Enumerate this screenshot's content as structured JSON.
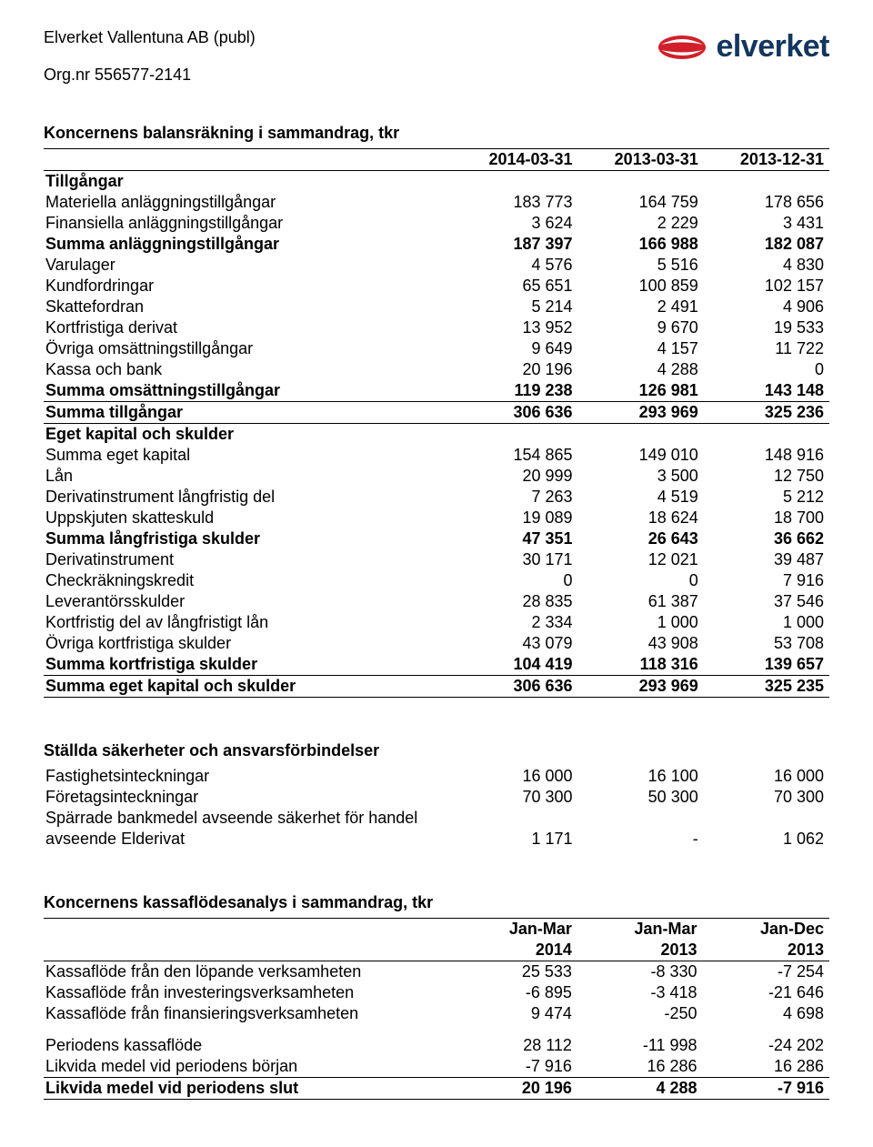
{
  "header": {
    "company": "Elverket Vallentuna AB (publ)",
    "orgnr": "Org.nr 556577-2141",
    "logo_text": "elverket",
    "logo_colors": {
      "red": "#d1202a",
      "navy": "#13365e",
      "white": "#ffffff"
    }
  },
  "balance": {
    "title": "Koncernens balansräkning i sammandrag, tkr",
    "columns": [
      "2014-03-31",
      "2013-03-31",
      "2013-12-31"
    ],
    "rows": [
      {
        "label": "Tillgångar",
        "bold": true
      },
      {
        "label": "Materiella anläggningstillgångar",
        "values": [
          "183 773",
          "164 759",
          "178 656"
        ]
      },
      {
        "label": "Finansiella anläggningstillgångar",
        "values": [
          "3 624",
          "2 229",
          "3 431"
        ]
      },
      {
        "label": "Summa anläggningstillgångar",
        "bold": true,
        "values": [
          "187 397",
          "166 988",
          "182 087"
        ]
      },
      {
        "label": "Varulager",
        "values": [
          "4 576",
          "5 516",
          "4 830"
        ]
      },
      {
        "label": "Kundfordringar",
        "values": [
          "65 651",
          "100 859",
          "102 157"
        ]
      },
      {
        "label": "Skattefordran",
        "values": [
          "5 214",
          "2 491",
          "4 906"
        ]
      },
      {
        "label": "Kortfristiga derivat",
        "values": [
          "13 952",
          "9 670",
          "19 533"
        ]
      },
      {
        "label": "Övriga omsättningstillgångar",
        "values": [
          "9 649",
          "4 157",
          "11 722"
        ]
      },
      {
        "label": "Kassa och bank",
        "values": [
          "20 196",
          "4 288",
          "0"
        ]
      },
      {
        "label": "Summa omsättningstillgångar",
        "bold": true,
        "values": [
          "119 238",
          "126 981",
          "143 148"
        ]
      },
      {
        "label": "Summa tillgångar",
        "bold": true,
        "boxed": true,
        "values": [
          "306 636",
          "293 969",
          "325 236"
        ]
      },
      {
        "label": "Eget kapital och skulder",
        "bold": true
      },
      {
        "label": "Summa eget kapital",
        "values": [
          "154 865",
          "149 010",
          "148 916"
        ]
      },
      {
        "label": "Lån",
        "values": [
          "20 999",
          "3 500",
          "12 750"
        ]
      },
      {
        "label": "Derivatinstrument långfristig del",
        "values": [
          "7 263",
          "4 519",
          "5 212"
        ]
      },
      {
        "label": "Uppskjuten skatteskuld",
        "values": [
          "19 089",
          "18 624",
          "18 700"
        ]
      },
      {
        "label": "Summa långfristiga skulder",
        "bold": true,
        "values": [
          "47 351",
          "26 643",
          "36 662"
        ]
      },
      {
        "label": "Derivatinstrument",
        "values": [
          "30 171",
          "12 021",
          "39 487"
        ]
      },
      {
        "label": "Checkräkningskredit",
        "values": [
          "0",
          "0",
          "7 916"
        ]
      },
      {
        "label": "Leverantörsskulder",
        "values": [
          "28 835",
          "61 387",
          "37 546"
        ]
      },
      {
        "label": "Kortfristig del av långfristigt lån",
        "values": [
          "2 334",
          "1 000",
          "1 000"
        ]
      },
      {
        "label": "Övriga kortfristiga skulder",
        "values": [
          "43 079",
          "43 908",
          "53 708"
        ]
      },
      {
        "label": "Summa kortfristiga skulder",
        "bold": true,
        "values": [
          "104 419",
          "118 316",
          "139 657"
        ]
      },
      {
        "label": "Summa eget kapital och skulder",
        "bold": true,
        "boxed": true,
        "values": [
          "306 636",
          "293 969",
          "325 235"
        ]
      }
    ]
  },
  "securities": {
    "title": "Ställda säkerheter och ansvarsförbindelser",
    "rows": [
      {
        "label": "Fastighetsinteckningar",
        "values": [
          "16 000",
          "16 100",
          "16 000"
        ]
      },
      {
        "label": "Företagsinteckningar",
        "values": [
          "70 300",
          "50 300",
          "70 300"
        ]
      },
      {
        "label": "Spärrade bankmedel avseende säkerhet för handel"
      },
      {
        "label": "avseende Elderivat",
        "values": [
          "1 171",
          "-",
          "1 062"
        ]
      }
    ]
  },
  "cashflow": {
    "title": "Koncernens kassaflödesanalys i sammandrag, tkr",
    "header1": [
      "Jan-Mar",
      "Jan-Mar",
      "Jan-Dec"
    ],
    "header2": [
      "2014",
      "2013",
      "2013"
    ],
    "rows": [
      {
        "label": "Kassaflöde från den löpande verksamheten",
        "values": [
          "25 533",
          "-8 330",
          "-7 254"
        ]
      },
      {
        "label": "Kassaflöde från investeringsverksamheten",
        "values": [
          "-6 895",
          "-3 418",
          "-21 646"
        ]
      },
      {
        "label": "Kassaflöde från finansieringsverksamheten",
        "values": [
          "9 474",
          "-250",
          "4 698"
        ]
      },
      {
        "spacer": true
      },
      {
        "label": "Periodens kassaflöde",
        "values": [
          "28 112",
          "-11 998",
          "-24 202"
        ]
      },
      {
        "label": "Likvida medel vid periodens början",
        "values": [
          "-7 916",
          "16 286",
          "16 286"
        ]
      },
      {
        "label": "Likvida medel vid periodens slut",
        "bold": true,
        "boxed": true,
        "values": [
          "20 196",
          "4 288",
          "-7 916"
        ]
      }
    ]
  }
}
